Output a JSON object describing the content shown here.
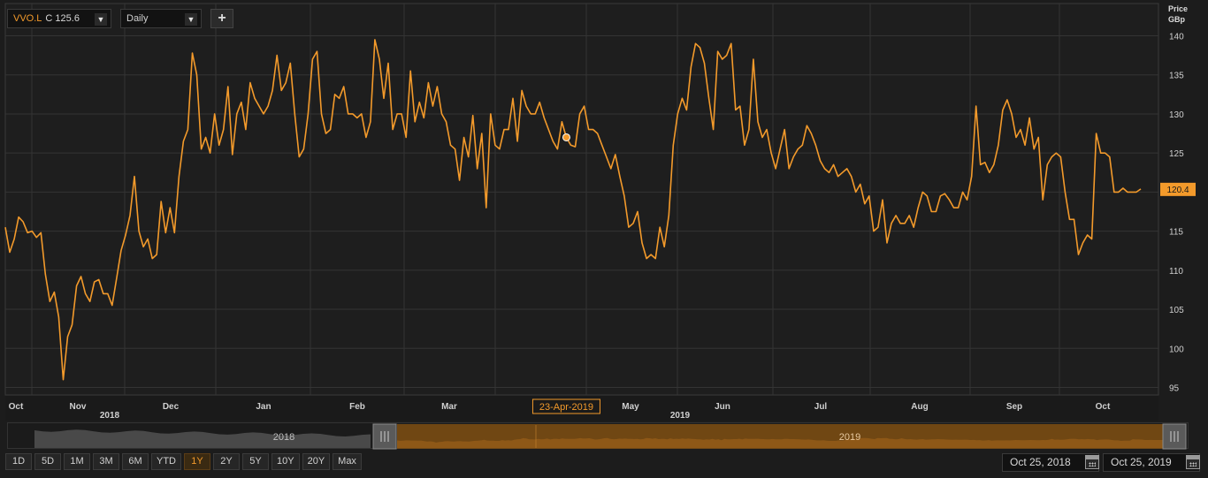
{
  "toolbar": {
    "symbol": "VVO.L",
    "last_label": "C 125.6",
    "interval": "Daily",
    "add_label": "+"
  },
  "price_axis": {
    "title_line1": "Price",
    "title_line2": "GBp"
  },
  "last_price_label": "120.4",
  "crosshair_date": "23-Apr-2019",
  "navigator": {
    "year_left": "2018",
    "year_right": "2019"
  },
  "range_buttons": [
    "1D",
    "5D",
    "1M",
    "3M",
    "6M",
    "YTD",
    "1Y",
    "2Y",
    "5Y",
    "10Y",
    "20Y",
    "Max"
  ],
  "active_range": "1Y",
  "date_from": "Oct 25, 2018",
  "date_to": "Oct 25, 2019",
  "colors": {
    "line": "#f39a2b",
    "accent": "#f39a2b",
    "background": "#1c1c1c",
    "grid": "#333333"
  },
  "chart_data": {
    "type": "line",
    "title": "",
    "xlabel": "",
    "ylabel": "Price GBp",
    "ylim": [
      94,
      141
    ],
    "yticks": [
      95,
      100,
      105,
      110,
      115,
      120,
      125,
      130,
      135,
      140
    ],
    "x_tick_labels": [
      "Oct",
      "Nov",
      "Dec",
      "Jan",
      "Feb",
      "Mar",
      "Apr",
      "May",
      "Jun",
      "Jul",
      "Aug",
      "Sep",
      "Oct"
    ],
    "year_labels": [
      "2018",
      "2019"
    ],
    "grid": true,
    "series": [
      {
        "values": [
          115.5,
          112.3,
          114.0,
          116.8,
          116.2,
          114.8,
          115.0,
          114.2,
          114.8,
          109.5,
          106.0,
          107.2,
          104.0,
          96.0,
          101.5,
          103.0,
          108.0,
          109.2,
          107.0,
          106.0,
          108.5,
          108.8,
          107.0,
          107.0,
          105.5,
          109.0,
          112.5,
          114.5,
          117.0,
          122.0,
          115.0,
          113.0,
          114.0,
          111.5,
          112.0,
          118.8,
          114.8,
          118.0,
          114.8,
          122.0,
          126.5,
          128.0,
          137.8,
          135.0,
          125.5,
          127.0,
          125.0,
          130.0,
          126.0,
          128.0,
          133.5,
          124.8,
          130.0,
          131.5,
          128.0,
          134.0,
          132.0,
          131.0,
          130.0,
          131.0,
          133.0,
          137.5,
          133.0,
          134.0,
          136.5,
          130.0,
          124.5,
          125.5,
          130.0,
          137.0,
          138.0,
          130.0,
          127.5,
          128.0,
          132.5,
          132.0,
          133.5,
          130.0,
          130.0,
          129.5,
          130.0,
          127.0,
          129.0,
          139.5,
          137.0,
          132.0,
          136.5,
          128.0,
          130.0,
          130.0,
          127.0,
          135.5,
          129.0,
          131.5,
          129.5,
          134.0,
          131.0,
          133.5,
          130.0,
          129.0,
          126.0,
          125.5,
          121.5,
          127.0,
          124.5,
          129.8,
          123.0,
          127.5,
          118.0,
          130.0,
          126.0,
          125.5,
          128.0,
          128.0,
          132.0,
          126.5,
          133.0,
          131.0,
          130.0,
          130.0,
          131.5,
          129.5,
          128.0,
          126.5,
          125.5,
          129.0,
          127.0,
          126.0,
          125.8,
          130.0,
          131.0,
          128.0,
          128.0,
          127.5,
          126.0,
          124.5,
          123.0,
          124.8,
          122.0,
          119.5,
          115.5,
          116.0,
          117.5,
          113.5,
          111.5,
          112.0,
          111.5,
          115.5,
          113.0,
          117.0,
          126.0,
          130.0,
          132.0,
          130.5,
          136.0,
          139.0,
          138.5,
          136.5,
          132.0,
          128.0,
          138.0,
          137.0,
          137.5,
          139.0,
          130.5,
          131.0,
          126.0,
          128.0,
          137.0,
          129.0,
          127.0,
          128.0,
          125.0,
          123.0,
          125.5,
          128.0,
          123.0,
          124.5,
          125.5,
          126.0,
          128.5,
          127.5,
          126.0,
          124.0,
          123.0,
          122.5,
          123.5,
          122.0,
          122.5,
          123.0,
          122.0,
          120.0,
          121.0,
          118.5,
          119.5,
          115.0,
          115.5,
          119.0,
          113.5,
          116.0,
          117.0,
          116.0,
          116.0,
          117.0,
          115.5,
          118.0,
          120.0,
          119.5,
          117.5,
          117.5,
          119.5,
          119.8,
          119.0,
          118.0,
          118.0,
          120.0,
          119.0,
          122.0,
          131.0,
          123.5,
          123.8,
          122.5,
          123.5,
          126.0,
          130.5,
          131.8,
          130.0,
          127.0,
          128.0,
          126.0,
          129.5,
          125.5,
          127.0,
          119.0,
          123.5,
          124.5,
          125.0,
          124.5,
          120.0,
          116.5,
          116.5,
          112.0,
          113.5,
          114.5,
          114.0,
          127.5,
          125.0,
          125.0,
          124.5,
          120.0,
          120.0,
          120.5,
          120.0,
          120.0,
          120.0,
          120.4
        ]
      }
    ]
  }
}
